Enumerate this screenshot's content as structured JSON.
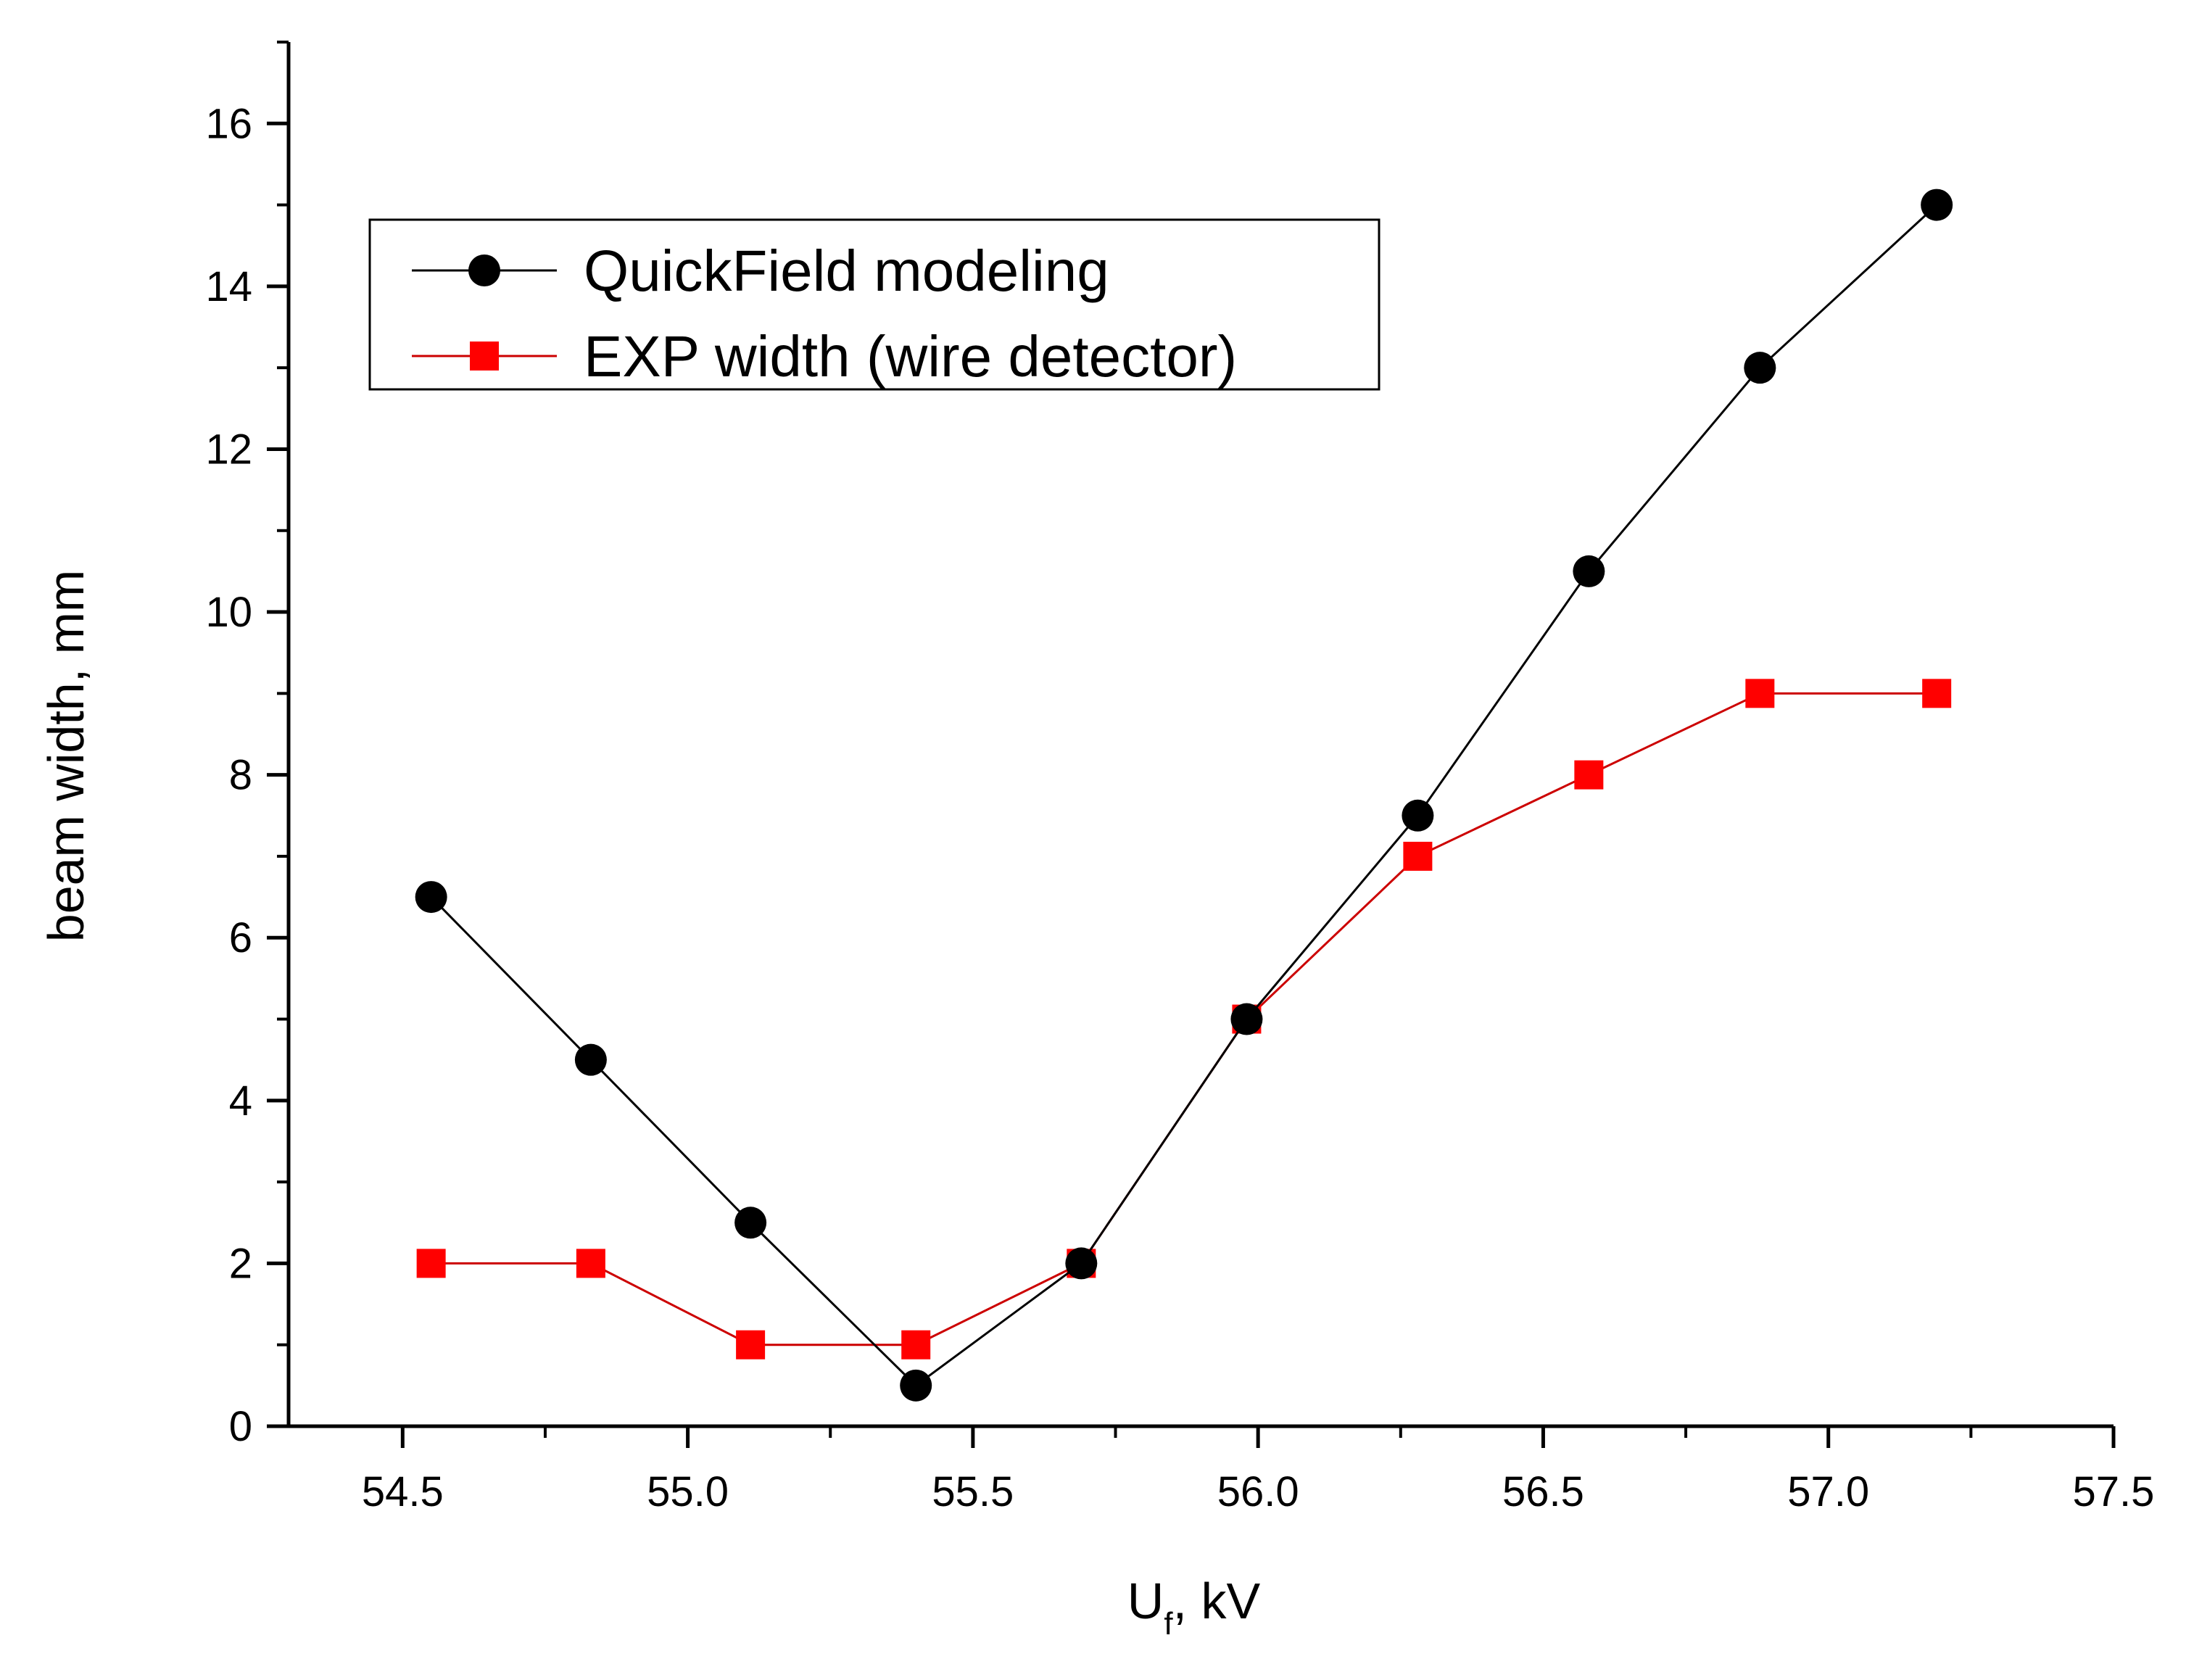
{
  "chart_data": {
    "type": "line",
    "title": "",
    "xlabel_main": "U",
    "xlabel_sub": "f",
    "xlabel_rest": ", kV",
    "ylabel": "beam width, mm",
    "xlim": [
      54.3,
      57.5
    ],
    "ylim": [
      0,
      17
    ],
    "xticks": [
      54.5,
      55.0,
      55.5,
      56.0,
      56.5,
      57.0,
      57.5
    ],
    "xtick_labels": [
      "54.5",
      "55.0",
      "55.5",
      "56.0",
      "56.5",
      "57.0",
      "57.5"
    ],
    "yticks": [
      0,
      2,
      4,
      6,
      8,
      10,
      12,
      14,
      16
    ],
    "ytick_labels": [
      "0",
      "2",
      "4",
      "6",
      "8",
      "10",
      "12",
      "14",
      "16"
    ],
    "grid": false,
    "legend_position": "top-left",
    "series": [
      {
        "name": "QuickField modeling",
        "color": "#000000",
        "marker": "circle",
        "x": [
          54.55,
          54.83,
          55.11,
          55.4,
          55.69,
          55.98,
          56.28,
          56.58,
          56.88,
          57.19
        ],
        "y": [
          6.5,
          4.5,
          2.5,
          0.5,
          2.0,
          5.0,
          7.5,
          10.5,
          13.0,
          15.0
        ]
      },
      {
        "name": "EXP width (wire detector)",
        "color": "#ff0000",
        "line_color": "#cc0000",
        "marker": "square",
        "x": [
          54.55,
          54.83,
          55.11,
          55.4,
          55.69,
          55.98,
          56.28,
          56.58,
          56.88,
          57.19
        ],
        "y": [
          2.0,
          2.0,
          1.0,
          1.0,
          2.0,
          5.0,
          7.0,
          8.0,
          9.0,
          9.0
        ]
      }
    ]
  }
}
